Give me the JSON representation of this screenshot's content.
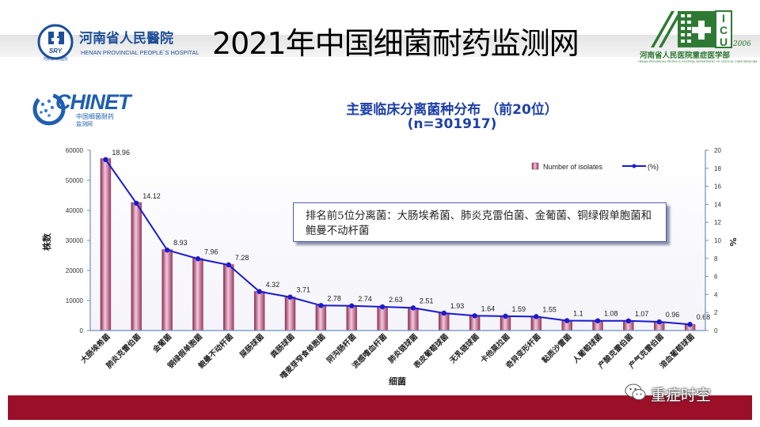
{
  "header": {
    "hospital_name_cn": "河南省人民醫院",
    "hospital_name_en": "HENAN PROVINCIAL PEOPLE`S HOSPITAL",
    "hospital_badge_text": "SRY",
    "hospital_badge_caption": "河南省人民医院",
    "slide_title": "2021年中国细菌耐药监测网",
    "icu_letters": [
      "I",
      "C",
      "U"
    ],
    "icu_year": "2006",
    "icu_dept_cn": "河南省人民医院重症医学部",
    "icu_dept_en": "HENAN PROVINCIAL PEOPLE'S HOSPITAL DEPARTMENT OF CRITICAL CARE MEDICINE",
    "brand_green": "#2e7a34",
    "brand_blue": "#1e4f9a"
  },
  "chinet": {
    "name": "CHINET",
    "sub_cn": "中国细菌耐药",
    "sub_cn2": "监测网"
  },
  "annotation": {
    "text": "排名前5位分离菌：大肠埃希菌、肺炎克雷伯菌、金葡菌、铜绿假单胞菌和鲍曼不动杆菌"
  },
  "footer": {
    "wechat_name": "重症时空",
    "bar_color": "#9c0f28"
  },
  "chart_data": {
    "type": "bar",
    "title": "主要临床分离菌种分布 （前20位）",
    "subtitle": "(n=301917)",
    "xlabel": "细菌",
    "ylabel": "株数",
    "y2label": "%",
    "ylim": [
      0,
      60000
    ],
    "yticks": [
      "0",
      "10000",
      "20000",
      "30000",
      "40000",
      "50000",
      "60000"
    ],
    "y2lim": [
      0,
      20
    ],
    "y2ticks": [
      "0",
      "2",
      "4",
      "6",
      "8",
      "10",
      "12",
      "14",
      "16",
      "18",
      "20"
    ],
    "legend_position": "top-right",
    "categories": [
      "大肠埃希菌",
      "肺炎克雷伯菌",
      "金葡菌",
      "铜绿假单胞菌",
      "鲍曼不动杆菌",
      "屎肠球菌",
      "粪肠球菌",
      "嗜麦芽窄食单胞菌",
      "阴沟肠杆菌",
      "流感嗜血杆菌",
      "肺炎链球菌",
      "表皮葡萄球菌",
      "无乳链球菌",
      "卡他莫拉菌",
      "奇异变形杆菌",
      "黏质沙雷菌",
      "人葡萄球菌",
      "产酸克雷伯菌",
      "产气克雷伯菌",
      "溶血葡萄球菌"
    ],
    "series": [
      {
        "name": "Number of isolates",
        "type": "bar",
        "axis": "left",
        "color": "#c9799c",
        "values": [
          57240,
          42630,
          26960,
          24030,
          21980,
          13040,
          11200,
          8390,
          8270,
          7940,
          7580,
          5830,
          4950,
          4800,
          4680,
          3320,
          3260,
          3230,
          2900,
          2050
        ]
      },
      {
        "name": "(%)",
        "type": "line",
        "axis": "right",
        "color": "#1a1ad0",
        "values": [
          18.96,
          14.12,
          8.93,
          7.96,
          7.28,
          4.32,
          3.71,
          2.78,
          2.74,
          2.63,
          2.51,
          1.93,
          1.64,
          1.59,
          1.55,
          1.1,
          1.08,
          1.07,
          0.96,
          0.68
        ]
      }
    ],
    "point_labels": [
      "18.96",
      "14.12",
      "8.93",
      "7.96",
      "7.28",
      "4.32",
      "3.71",
      "2.78",
      "2.74",
      "2.63",
      "2.51",
      "1.93",
      "1.64",
      "1.59",
      "1.55",
      "1.1",
      "1.08",
      "1.07",
      "0.96",
      "0.68"
    ]
  }
}
